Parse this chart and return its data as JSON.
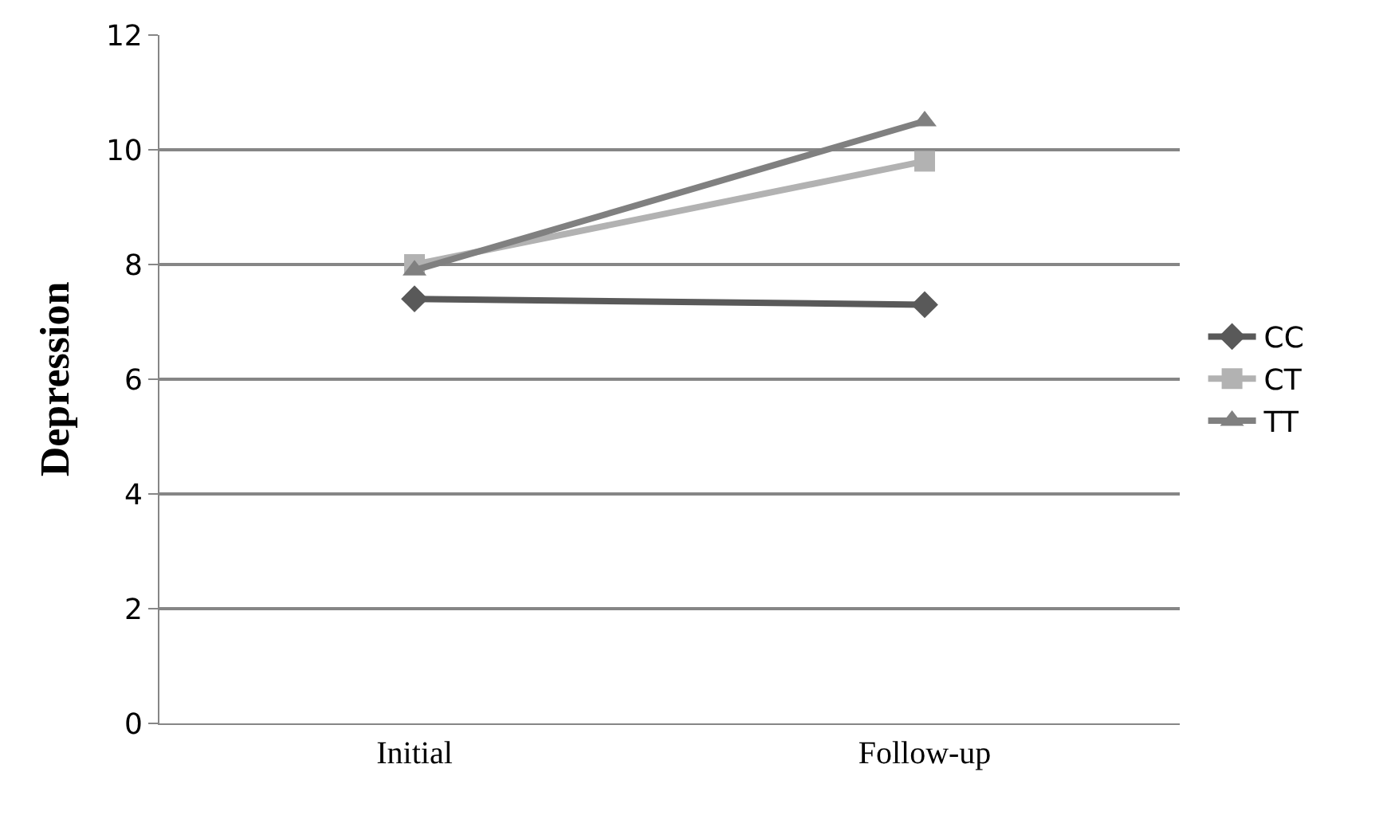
{
  "chart_data": {
    "type": "line",
    "ylabel": "Depression",
    "categories": [
      "Initial",
      "Follow-up"
    ],
    "series": [
      {
        "name": "CC",
        "color": "#595959",
        "marker": "diamond",
        "values": [
          7.4,
          7.3
        ]
      },
      {
        "name": "CT",
        "color": "#b2b2b2",
        "marker": "square",
        "values": [
          8.0,
          9.8
        ]
      },
      {
        "name": "TT",
        "color": "#808080",
        "marker": "triangle",
        "values": [
          7.9,
          10.5
        ]
      }
    ],
    "ylim": [
      0,
      12
    ],
    "yticks": [
      0,
      2,
      4,
      6,
      8,
      10,
      12
    ],
    "grid": "y",
    "legend": "right",
    "line_style": "solid"
  }
}
